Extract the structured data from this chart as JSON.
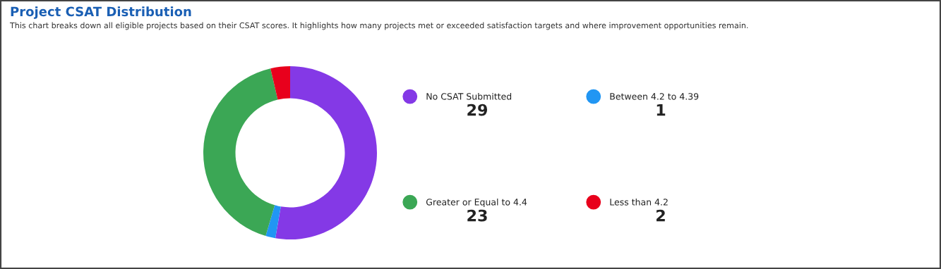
{
  "chart_data": {
    "type": "donut",
    "title": "Project CSAT Distribution",
    "subtitle": "This chart breaks down all eligible projects based on their CSAT scores. It highlights how many projects met or exceeded satisfaction targets and where improvement opportunities remain.",
    "categories": [
      "No CSAT Submitted",
      "Between 4.2 to 4.39",
      "Greater or Equal to 4.4",
      "Less than 4.2"
    ],
    "values": [
      29,
      1,
      23,
      2
    ],
    "colors": [
      "#8439e6",
      "#2196f3",
      "#3ba755",
      "#e8001c"
    ],
    "data_labels": true,
    "legend": "right"
  }
}
